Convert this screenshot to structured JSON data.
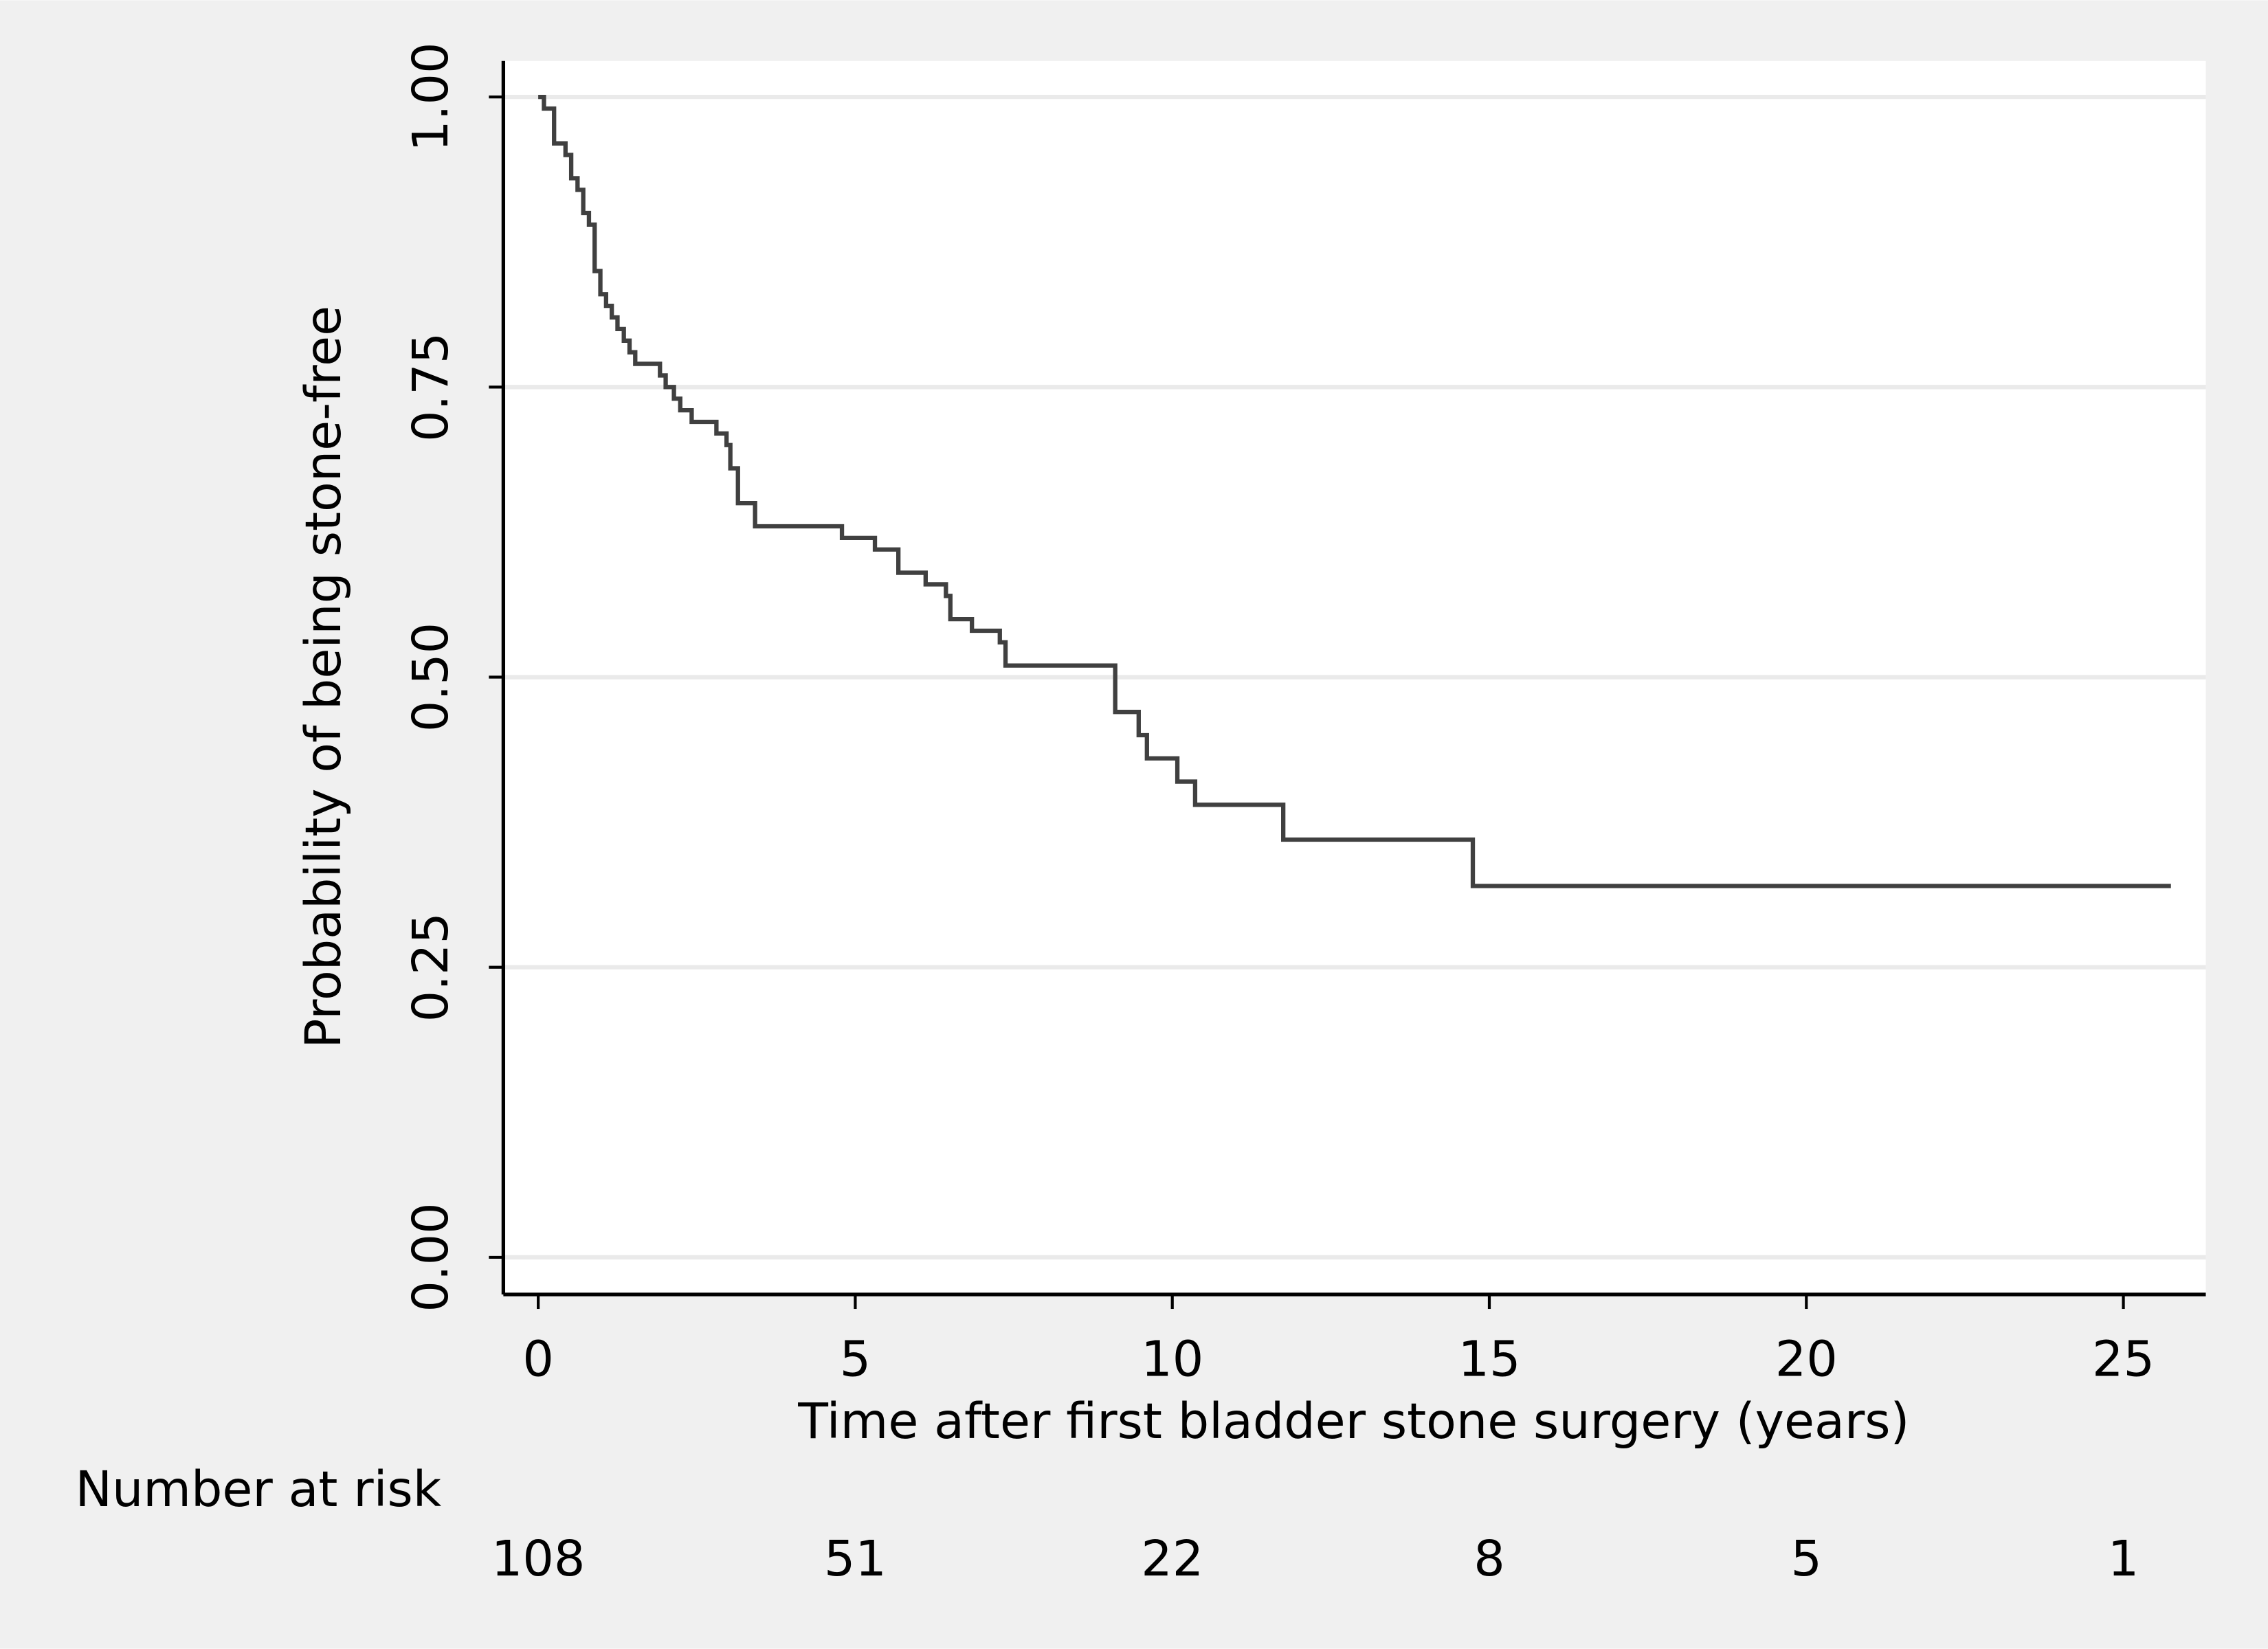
{
  "chart_data": {
    "type": "step",
    "ylabel": "Probability of being stone-free",
    "xlabel": "Time after first bladder stone surgery (years)",
    "color": "#404040",
    "x": [
      0,
      0.09,
      0.25,
      0.43,
      0.52,
      0.62,
      0.71,
      0.8,
      0.89,
      0.98,
      1.07,
      1.16,
      1.25,
      1.35,
      1.44,
      1.53,
      1.92,
      2.01,
      2.14,
      2.24,
      2.42,
      2.81,
      2.97,
      3.03,
      3.15,
      3.42,
      4.79,
      5.31,
      5.68,
      6.11,
      6.43,
      6.5,
      6.84,
      7.28,
      7.37,
      9.1,
      9.47,
      9.6,
      10.08,
      10.36,
      11.75,
      14.74,
      25.75
    ],
    "values": [
      1.0,
      0.99,
      0.96,
      0.95,
      0.93,
      0.92,
      0.9,
      0.89,
      0.85,
      0.83,
      0.82,
      0.81,
      0.8,
      0.79,
      0.78,
      0.77,
      0.76,
      0.75,
      0.74,
      0.73,
      0.72,
      0.71,
      0.7,
      0.68,
      0.65,
      0.63,
      0.62,
      0.61,
      0.59,
      0.58,
      0.57,
      0.55,
      0.54,
      0.53,
      0.51,
      0.47,
      0.45,
      0.43,
      0.41,
      0.39,
      0.36,
      0.32,
      0.32
    ],
    "xlim": [
      -0.55,
      26.3
    ],
    "ylim": [
      -0.032,
      1.031
    ],
    "xticks": [
      0,
      5,
      10,
      15,
      20,
      25
    ],
    "yticks": [
      {
        "value": 0,
        "label": "0.00"
      },
      {
        "value": 0.25,
        "label": "0.25"
      },
      {
        "value": 0.5,
        "label": "0.50"
      },
      {
        "value": 0.75,
        "label": "0.75"
      },
      {
        "value": 1,
        "label": "1.00"
      }
    ],
    "grid": true,
    "risk_table": {
      "label": "Number at risk",
      "counts": [
        108,
        51,
        22,
        8,
        5,
        1
      ]
    }
  }
}
